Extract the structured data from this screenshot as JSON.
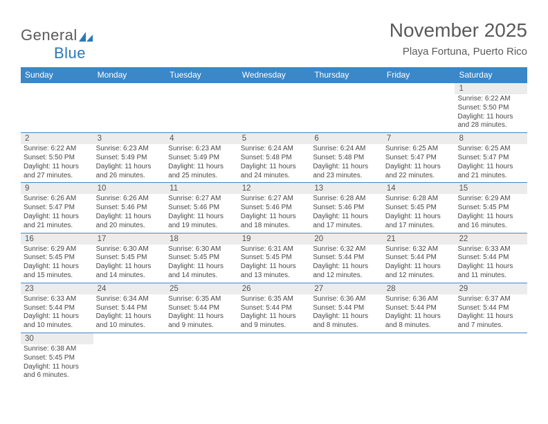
{
  "logo": {
    "text1": "General",
    "text2": "Blue"
  },
  "title": "November 2025",
  "subtitle": "Playa Fortuna, Puerto Rico",
  "colors": {
    "header_bg": "#3b87c8",
    "header_fg": "#ffffff",
    "daynum_bg": "#ececec",
    "border": "#3b87c8",
    "text": "#484848",
    "title": "#5a5a5a"
  },
  "day_labels": [
    "Sunday",
    "Monday",
    "Tuesday",
    "Wednesday",
    "Thursday",
    "Friday",
    "Saturday"
  ],
  "weeks": [
    {
      "nums": [
        "",
        "",
        "",
        "",
        "",
        "",
        "1"
      ],
      "cells": [
        null,
        null,
        null,
        null,
        null,
        null,
        {
          "sunrise": "6:22 AM",
          "sunset": "5:50 PM",
          "dl1": "Daylight: 11 hours",
          "dl2": "and 28 minutes."
        }
      ]
    },
    {
      "nums": [
        "2",
        "3",
        "4",
        "5",
        "6",
        "7",
        "8"
      ],
      "cells": [
        {
          "sunrise": "6:22 AM",
          "sunset": "5:50 PM",
          "dl1": "Daylight: 11 hours",
          "dl2": "and 27 minutes."
        },
        {
          "sunrise": "6:23 AM",
          "sunset": "5:49 PM",
          "dl1": "Daylight: 11 hours",
          "dl2": "and 26 minutes."
        },
        {
          "sunrise": "6:23 AM",
          "sunset": "5:49 PM",
          "dl1": "Daylight: 11 hours",
          "dl2": "and 25 minutes."
        },
        {
          "sunrise": "6:24 AM",
          "sunset": "5:48 PM",
          "dl1": "Daylight: 11 hours",
          "dl2": "and 24 minutes."
        },
        {
          "sunrise": "6:24 AM",
          "sunset": "5:48 PM",
          "dl1": "Daylight: 11 hours",
          "dl2": "and 23 minutes."
        },
        {
          "sunrise": "6:25 AM",
          "sunset": "5:47 PM",
          "dl1": "Daylight: 11 hours",
          "dl2": "and 22 minutes."
        },
        {
          "sunrise": "6:25 AM",
          "sunset": "5:47 PM",
          "dl1": "Daylight: 11 hours",
          "dl2": "and 21 minutes."
        }
      ]
    },
    {
      "nums": [
        "9",
        "10",
        "11",
        "12",
        "13",
        "14",
        "15"
      ],
      "cells": [
        {
          "sunrise": "6:26 AM",
          "sunset": "5:47 PM",
          "dl1": "Daylight: 11 hours",
          "dl2": "and 21 minutes."
        },
        {
          "sunrise": "6:26 AM",
          "sunset": "5:46 PM",
          "dl1": "Daylight: 11 hours",
          "dl2": "and 20 minutes."
        },
        {
          "sunrise": "6:27 AM",
          "sunset": "5:46 PM",
          "dl1": "Daylight: 11 hours",
          "dl2": "and 19 minutes."
        },
        {
          "sunrise": "6:27 AM",
          "sunset": "5:46 PM",
          "dl1": "Daylight: 11 hours",
          "dl2": "and 18 minutes."
        },
        {
          "sunrise": "6:28 AM",
          "sunset": "5:46 PM",
          "dl1": "Daylight: 11 hours",
          "dl2": "and 17 minutes."
        },
        {
          "sunrise": "6:28 AM",
          "sunset": "5:45 PM",
          "dl1": "Daylight: 11 hours",
          "dl2": "and 17 minutes."
        },
        {
          "sunrise": "6:29 AM",
          "sunset": "5:45 PM",
          "dl1": "Daylight: 11 hours",
          "dl2": "and 16 minutes."
        }
      ]
    },
    {
      "nums": [
        "16",
        "17",
        "18",
        "19",
        "20",
        "21",
        "22"
      ],
      "cells": [
        {
          "sunrise": "6:29 AM",
          "sunset": "5:45 PM",
          "dl1": "Daylight: 11 hours",
          "dl2": "and 15 minutes."
        },
        {
          "sunrise": "6:30 AM",
          "sunset": "5:45 PM",
          "dl1": "Daylight: 11 hours",
          "dl2": "and 14 minutes."
        },
        {
          "sunrise": "6:30 AM",
          "sunset": "5:45 PM",
          "dl1": "Daylight: 11 hours",
          "dl2": "and 14 minutes."
        },
        {
          "sunrise": "6:31 AM",
          "sunset": "5:45 PM",
          "dl1": "Daylight: 11 hours",
          "dl2": "and 13 minutes."
        },
        {
          "sunrise": "6:32 AM",
          "sunset": "5:44 PM",
          "dl1": "Daylight: 11 hours",
          "dl2": "and 12 minutes."
        },
        {
          "sunrise": "6:32 AM",
          "sunset": "5:44 PM",
          "dl1": "Daylight: 11 hours",
          "dl2": "and 12 minutes."
        },
        {
          "sunrise": "6:33 AM",
          "sunset": "5:44 PM",
          "dl1": "Daylight: 11 hours",
          "dl2": "and 11 minutes."
        }
      ]
    },
    {
      "nums": [
        "23",
        "24",
        "25",
        "26",
        "27",
        "28",
        "29"
      ],
      "cells": [
        {
          "sunrise": "6:33 AM",
          "sunset": "5:44 PM",
          "dl1": "Daylight: 11 hours",
          "dl2": "and 10 minutes."
        },
        {
          "sunrise": "6:34 AM",
          "sunset": "5:44 PM",
          "dl1": "Daylight: 11 hours",
          "dl2": "and 10 minutes."
        },
        {
          "sunrise": "6:35 AM",
          "sunset": "5:44 PM",
          "dl1": "Daylight: 11 hours",
          "dl2": "and 9 minutes."
        },
        {
          "sunrise": "6:35 AM",
          "sunset": "5:44 PM",
          "dl1": "Daylight: 11 hours",
          "dl2": "and 9 minutes."
        },
        {
          "sunrise": "6:36 AM",
          "sunset": "5:44 PM",
          "dl1": "Daylight: 11 hours",
          "dl2": "and 8 minutes."
        },
        {
          "sunrise": "6:36 AM",
          "sunset": "5:44 PM",
          "dl1": "Daylight: 11 hours",
          "dl2": "and 8 minutes."
        },
        {
          "sunrise": "6:37 AM",
          "sunset": "5:44 PM",
          "dl1": "Daylight: 11 hours",
          "dl2": "and 7 minutes."
        }
      ]
    },
    {
      "nums": [
        "30",
        "",
        "",
        "",
        "",
        "",
        ""
      ],
      "cells": [
        {
          "sunrise": "6:38 AM",
          "sunset": "5:45 PM",
          "dl1": "Daylight: 11 hours",
          "dl2": "and 6 minutes."
        },
        null,
        null,
        null,
        null,
        null,
        null
      ]
    }
  ]
}
